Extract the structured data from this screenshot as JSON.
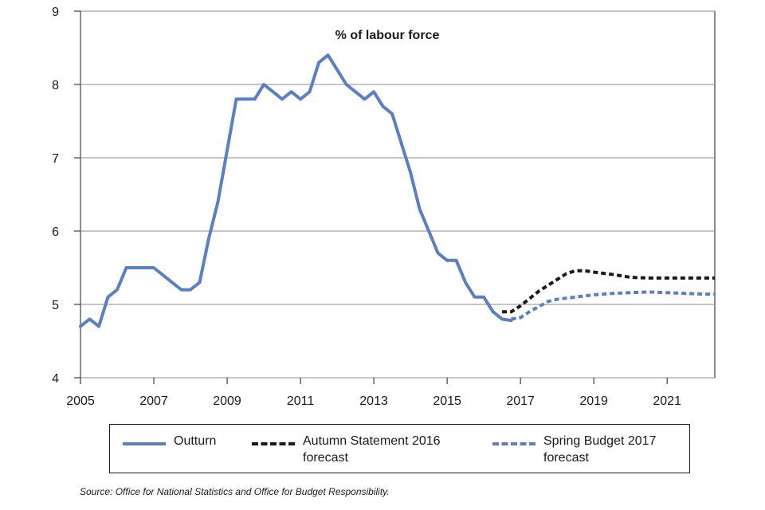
{
  "chart_data": {
    "type": "line",
    "title": "% of labour force",
    "xlabel": "",
    "ylabel": "",
    "xlim": [
      2005,
      2022.3
    ],
    "ylim": [
      4,
      9
    ],
    "yticks": [
      "4",
      "5",
      "6",
      "7",
      "8",
      "9"
    ],
    "xticks": [
      "2005",
      "2007",
      "2009",
      "2011",
      "2013",
      "2015",
      "2017",
      "2019",
      "2021"
    ],
    "grid": "horizontal",
    "legend_position": "bottom",
    "series": [
      {
        "name": "Outturn",
        "color": "#5b7fc7",
        "style": "solid",
        "points": [
          [
            2005.0,
            4.7
          ],
          [
            2005.25,
            4.8
          ],
          [
            2005.5,
            4.7
          ],
          [
            2005.75,
            5.1
          ],
          [
            2006.0,
            5.2
          ],
          [
            2006.25,
            5.5
          ],
          [
            2006.5,
            5.5
          ],
          [
            2006.75,
            5.5
          ],
          [
            2007.0,
            5.5
          ],
          [
            2007.25,
            5.4
          ],
          [
            2007.5,
            5.3
          ],
          [
            2007.75,
            5.2
          ],
          [
            2008.0,
            5.2
          ],
          [
            2008.25,
            5.3
          ],
          [
            2008.5,
            5.9
          ],
          [
            2008.75,
            6.4
          ],
          [
            2009.0,
            7.1
          ],
          [
            2009.25,
            7.8
          ],
          [
            2009.5,
            7.8
          ],
          [
            2009.75,
            7.8
          ],
          [
            2010.0,
            8.0
          ],
          [
            2010.25,
            7.9
          ],
          [
            2010.5,
            7.8
          ],
          [
            2010.75,
            7.9
          ],
          [
            2011.0,
            7.8
          ],
          [
            2011.25,
            7.9
          ],
          [
            2011.5,
            8.3
          ],
          [
            2011.75,
            8.4
          ],
          [
            2012.0,
            8.2
          ],
          [
            2012.25,
            8.0
          ],
          [
            2012.5,
            7.9
          ],
          [
            2012.75,
            7.8
          ],
          [
            2013.0,
            7.9
          ],
          [
            2013.25,
            7.7
          ],
          [
            2013.5,
            7.6
          ],
          [
            2013.75,
            7.2
          ],
          [
            2014.0,
            6.8
          ],
          [
            2014.25,
            6.3
          ],
          [
            2014.5,
            6.0
          ],
          [
            2014.75,
            5.7
          ],
          [
            2015.0,
            5.6
          ],
          [
            2015.25,
            5.6
          ],
          [
            2015.5,
            5.3
          ],
          [
            2015.75,
            5.1
          ],
          [
            2016.0,
            5.1
          ],
          [
            2016.25,
            4.9
          ],
          [
            2016.5,
            4.8
          ],
          [
            2016.75,
            4.78
          ]
        ]
      },
      {
        "name": "Autumn Statement 2016 forecast",
        "color": "#1a1a1a",
        "style": "dashed",
        "points": [
          [
            2016.5,
            4.9
          ],
          [
            2016.75,
            4.9
          ],
          [
            2017.0,
            4.98
          ],
          [
            2017.25,
            5.08
          ],
          [
            2017.5,
            5.18
          ],
          [
            2017.75,
            5.26
          ],
          [
            2018.0,
            5.34
          ],
          [
            2018.25,
            5.42
          ],
          [
            2018.5,
            5.46
          ],
          [
            2018.75,
            5.46
          ],
          [
            2019.0,
            5.44
          ],
          [
            2019.5,
            5.41
          ],
          [
            2020.0,
            5.37
          ],
          [
            2020.5,
            5.36
          ],
          [
            2021.0,
            5.36
          ],
          [
            2021.5,
            5.36
          ],
          [
            2022.0,
            5.36
          ],
          [
            2022.3,
            5.36
          ]
        ]
      },
      {
        "name": "Spring Budget 2017 forecast",
        "color": "#5b7fc7",
        "style": "dashed",
        "points": [
          [
            2016.75,
            4.8
          ],
          [
            2017.0,
            4.82
          ],
          [
            2017.25,
            4.9
          ],
          [
            2017.5,
            4.97
          ],
          [
            2017.75,
            5.04
          ],
          [
            2018.0,
            5.07
          ],
          [
            2018.5,
            5.1
          ],
          [
            2019.0,
            5.13
          ],
          [
            2019.5,
            5.15
          ],
          [
            2020.0,
            5.16
          ],
          [
            2020.5,
            5.17
          ],
          [
            2021.0,
            5.16
          ],
          [
            2021.5,
            5.15
          ],
          [
            2022.0,
            5.14
          ],
          [
            2022.3,
            5.14
          ]
        ]
      }
    ]
  },
  "legend": {
    "items": [
      {
        "label": "Outturn",
        "color": "#5b7fc7",
        "style": "solid"
      },
      {
        "label": "Autumn Statement 2016 forecast",
        "color": "#1a1a1a",
        "style": "dashed"
      },
      {
        "label": "Spring Budget 2017 forecast",
        "color": "#5b7fc7",
        "style": "dashed"
      }
    ]
  },
  "source": "Source: Office for National Statistics and Office for Budget Responsibility."
}
